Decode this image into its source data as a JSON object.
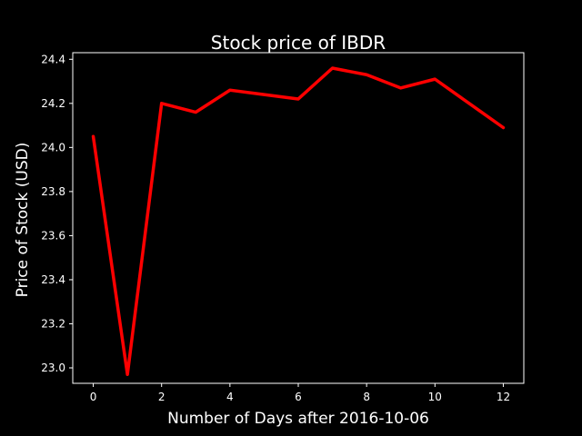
{
  "chart_data": {
    "type": "line",
    "title": "Stock price of IBDR",
    "xlabel": "Number of Days after 2016-10-06",
    "ylabel": "Price of Stock (USD)",
    "x": [
      0,
      1,
      2,
      3,
      4,
      5,
      6,
      7,
      8,
      9,
      10,
      11,
      12
    ],
    "series": [
      {
        "values": [
          24.05,
          22.97,
          24.2,
          24.16,
          24.26,
          24.24,
          24.22,
          24.36,
          24.33,
          24.27,
          24.31,
          24.2,
          24.09
        ],
        "color": "#ff0000"
      }
    ],
    "xlim": [
      -0.6,
      12.6
    ],
    "ylim": [
      22.93,
      24.43
    ],
    "xticks": [
      0,
      2,
      4,
      6,
      8,
      10,
      12
    ],
    "xtick_labels": [
      "0",
      "2",
      "4",
      "6",
      "8",
      "10",
      "12"
    ],
    "yticks": [
      23.0,
      23.2,
      23.4,
      23.6,
      23.8,
      24.0,
      24.2,
      24.4
    ],
    "ytick_labels": [
      "23.0",
      "23.2",
      "23.4",
      "23.6",
      "23.8",
      "24.0",
      "24.2",
      "24.4"
    ],
    "grid": false,
    "background_color": "#000000",
    "axis_color": "#ffffff"
  }
}
